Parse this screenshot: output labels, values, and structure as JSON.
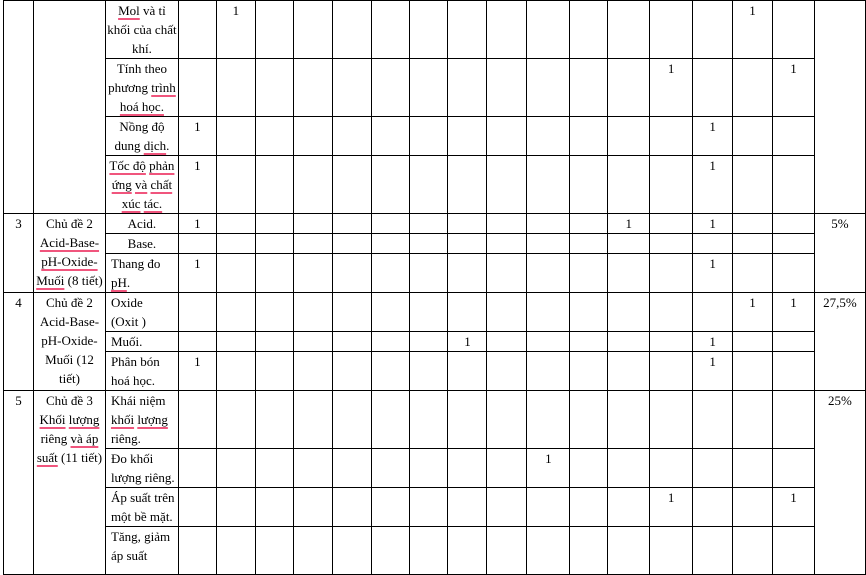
{
  "document": {
    "underline_color": "#f0557d",
    "border_color": "#000000",
    "table": {
      "mark_columns_count": 16,
      "groups": [
        {
          "index": "",
          "topic_lines": [],
          "percent": "",
          "rows": [
            {
              "align": "center",
              "lines": [
                [
                  {
                    "t": "Mol",
                    "u": true
                  },
                  {
                    "t": " và tỉ"
                  }
                ],
                [
                  {
                    "t": "khối của chất"
                  }
                ],
                [
                  {
                    "t": "khí."
                  }
                ]
              ],
              "marks": {
                "1": "1",
                "14": "1"
              }
            },
            {
              "align": "center",
              "lines": [
                [
                  {
                    "t": "Tính theo"
                  }
                ],
                [
                  {
                    "t": "phương "
                  },
                  {
                    "t": "trình",
                    "u": true
                  }
                ],
                [
                  {
                    "t": "hoá học.",
                    "u": true
                  }
                ]
              ],
              "marks": {
                "12": "1",
                "15": "1"
              }
            },
            {
              "align": "center",
              "lines": [
                [
                  {
                    "t": "Nồng độ"
                  }
                ],
                [
                  {
                    "t": "dung "
                  },
                  {
                    "t": "dịch",
                    "u": true
                  },
                  {
                    "t": "."
                  }
                ]
              ],
              "marks": {
                "0": "1",
                "13": "1"
              }
            },
            {
              "align": "center",
              "lines": [
                [
                  {
                    "t": "Tốc độ",
                    "u": true
                  },
                  {
                    "t": " "
                  },
                  {
                    "t": "phản",
                    "u": true
                  }
                ],
                [
                  {
                    "t": "ứng",
                    "u": true
                  },
                  {
                    "t": " "
                  },
                  {
                    "t": "và",
                    "u": true
                  },
                  {
                    "t": " "
                  },
                  {
                    "t": "chất",
                    "u": true
                  }
                ],
                [
                  {
                    "t": "xúc",
                    "u": true
                  },
                  {
                    "t": " "
                  },
                  {
                    "t": "tác.",
                    "u": true
                  }
                ]
              ],
              "marks": {
                "0": "1",
                "13": "1"
              }
            }
          ]
        },
        {
          "index": "3",
          "topic_lines": [
            [
              {
                "t": "Chủ đề 2"
              }
            ],
            [
              {
                "t": "Acid-Base-",
                "u": true
              }
            ],
            [
              {
                "t": "pH-Oxide-",
                "u": true
              }
            ],
            [
              {
                "t": "Muối",
                "u": true
              },
              {
                "t": " (8 tiết)"
              }
            ]
          ],
          "percent": "5%",
          "rows": [
            {
              "align": "center",
              "lines": [
                [
                  {
                    "t": "Acid."
                  }
                ]
              ],
              "marks": {
                "0": "1",
                "11": "1",
                "13": "1"
              }
            },
            {
              "align": "center",
              "lines": [
                [
                  {
                    "t": "Base."
                  }
                ]
              ],
              "marks": {}
            },
            {
              "align": "left",
              "lines": [
                [
                  {
                    "t": "Thang đo"
                  }
                ],
                [
                  {
                    "t": "pH",
                    "u": true
                  },
                  {
                    "t": "."
                  }
                ]
              ],
              "marks": {
                "0": "1",
                "13": "1"
              }
            }
          ]
        },
        {
          "index": "4",
          "topic_lines": [
            [
              {
                "t": "Chủ đề 2"
              }
            ],
            [
              {
                "t": "Acid-Base-"
              }
            ],
            [
              {
                "t": "pH-Oxide-"
              }
            ],
            [
              {
                "t": "Muối (12"
              }
            ],
            [
              {
                "t": "tiết)"
              }
            ]
          ],
          "percent": "27,5%",
          "rows": [
            {
              "align": "left",
              "lines": [
                [
                  {
                    "t": "Oxide"
                  }
                ],
                [
                  {
                    "t": "(Oxit )"
                  }
                ]
              ],
              "marks": {
                "14": "1",
                "15": "1"
              }
            },
            {
              "align": "left",
              "lines": [
                [
                  {
                    "t": "Muối."
                  }
                ]
              ],
              "marks": {
                "7": "1",
                "13": "1"
              }
            },
            {
              "align": "left",
              "lines": [
                [
                  {
                    "t": "Phân bón"
                  }
                ],
                [
                  {
                    "t": "hoá học."
                  }
                ]
              ],
              "marks": {
                "0": "1",
                "13": "1"
              }
            }
          ]
        },
        {
          "index": "5",
          "topic_lines": [
            [
              {
                "t": "Chủ đề 3"
              }
            ],
            [
              {
                "t": "Khối",
                "u": true
              },
              {
                "t": " "
              },
              {
                "t": "lượng",
                "u": true
              }
            ],
            [
              {
                "t": "riêng "
              },
              {
                "t": "và áp",
                "u": true
              }
            ],
            [
              {
                "t": "suất",
                "u": true
              },
              {
                "t": " (11 tiết)"
              }
            ]
          ],
          "percent": "25%",
          "rows": [
            {
              "align": "left",
              "lines": [
                [
                  {
                    "t": "Khái niệm"
                  }
                ],
                [
                  {
                    "t": "khối",
                    "u": true
                  },
                  {
                    "t": " "
                  },
                  {
                    "t": "lượng",
                    "u": true
                  }
                ],
                [
                  {
                    "t": "riêng."
                  }
                ]
              ],
              "marks": {}
            },
            {
              "align": "left",
              "lines": [
                [
                  {
                    "t": "Đo khối"
                  }
                ],
                [
                  {
                    "t": "lượng riêng."
                  }
                ]
              ],
              "marks": {
                "9": "1"
              }
            },
            {
              "align": "left",
              "lines": [
                [
                  {
                    "t": "Áp suất trên"
                  }
                ],
                [
                  {
                    "t": "một bề mặt."
                  }
                ]
              ],
              "marks": {
                "12": "1",
                "15": "1"
              }
            },
            {
              "align": "left",
              "lines": [
                [
                  {
                    "t": "Tăng, giảm"
                  }
                ],
                [
                  {
                    "t": "áp suất"
                  }
                ]
              ],
              "marks": {}
            }
          ]
        }
      ]
    }
  }
}
